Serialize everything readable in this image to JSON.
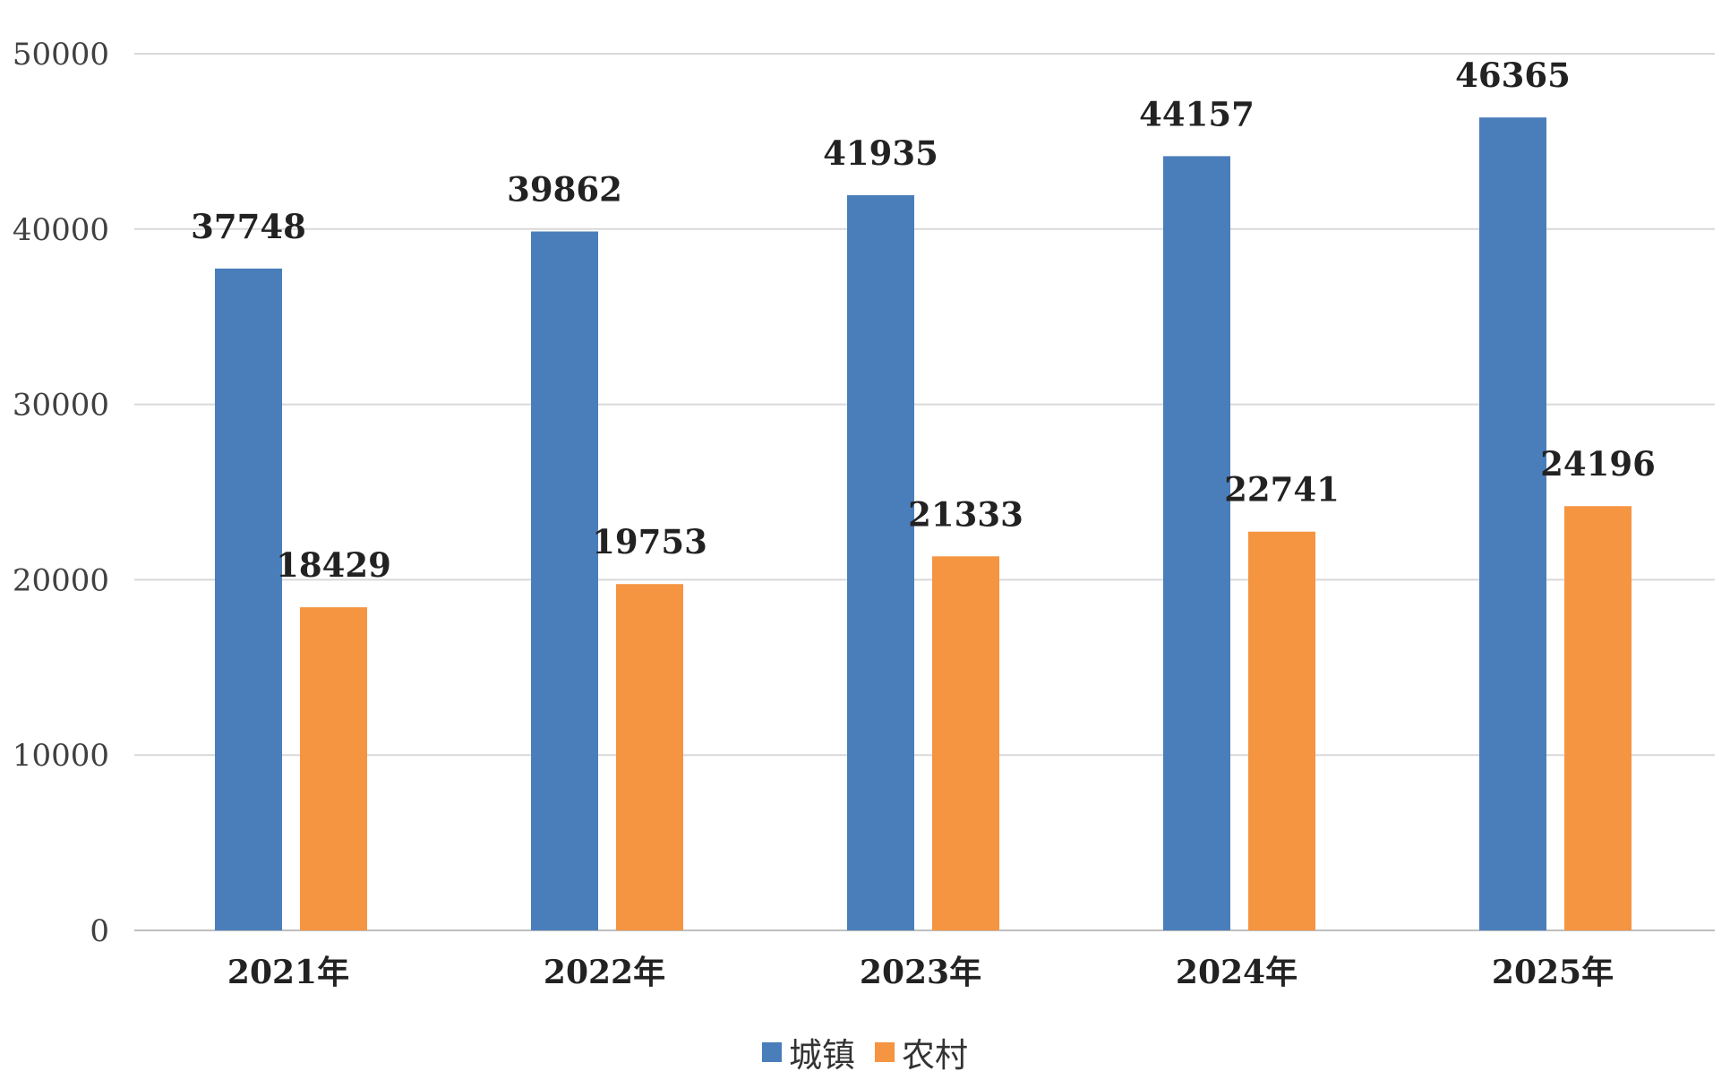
{
  "chart_data": {
    "type": "bar",
    "categories": [
      "2021年",
      "2022年",
      "2023年",
      "2024年",
      "2025年"
    ],
    "series": [
      {
        "name": "城镇",
        "values": [
          37748,
          39862,
          41935,
          44157,
          46365
        ],
        "color": "#4a7ebb"
      },
      {
        "name": "农村",
        "values": [
          18429,
          19753,
          21333,
          22741,
          24196
        ],
        "color": "#f59441"
      }
    ],
    "yticks": [
      "0",
      "10000",
      "20000",
      "30000",
      "40000",
      "50000"
    ],
    "ylim": [
      0,
      50000
    ],
    "grid": true,
    "legend_position": "bottom",
    "data_labels": true,
    "title": "",
    "xlabel": "",
    "ylabel": ""
  }
}
